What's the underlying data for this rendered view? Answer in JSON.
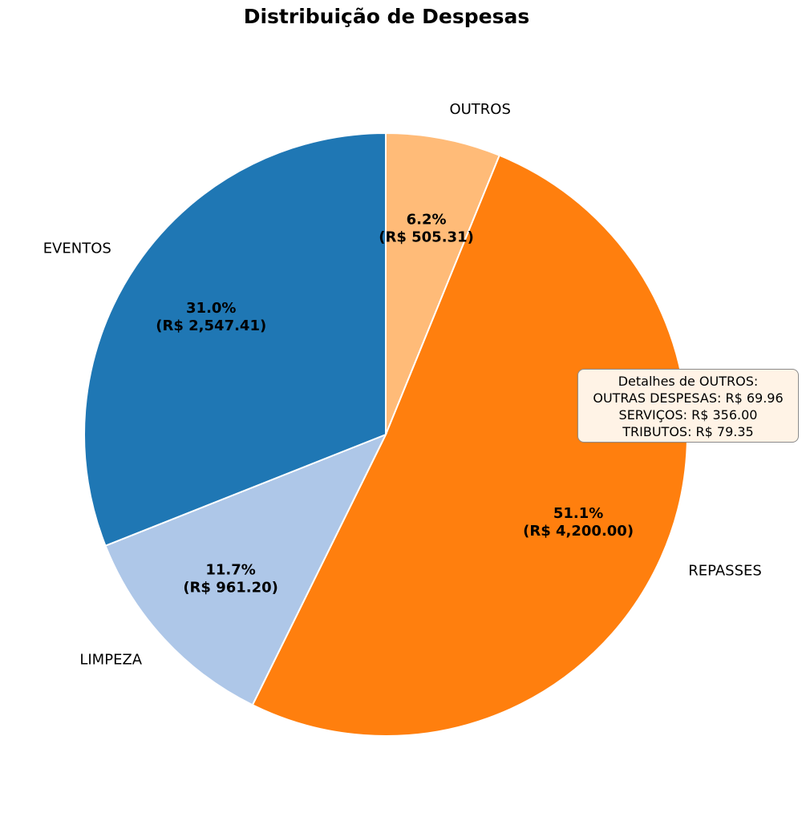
{
  "chart_data": {
    "type": "pie",
    "title": "Distribuição de Despesas",
    "categories": [
      "OUTROS",
      "REPASSES",
      "LIMPEZA",
      "EVENTOS"
    ],
    "values": [
      505.31,
      4200.0,
      961.2,
      2547.41
    ],
    "percent_labels": [
      "6.2%",
      "51.1%",
      "11.7%",
      "31.0%"
    ],
    "value_labels": [
      "(R$ 505.31)",
      "(R$ 4,200.00)",
      "(R$ 961.20)",
      "(R$ 2,547.41)"
    ],
    "colors": [
      "#ffbb78",
      "#ff7f0e",
      "#aec7e8",
      "#1f77b4"
    ],
    "start_angle": "top, clockwise",
    "legend": "none"
  },
  "details": {
    "title": "Detalhes de OUTROS:",
    "lines": [
      "OUTRAS DESPESAS: R$ 69.96",
      "SERVIÇOS: R$ 356.00",
      "TRIBUTOS: R$ 79.35"
    ]
  }
}
